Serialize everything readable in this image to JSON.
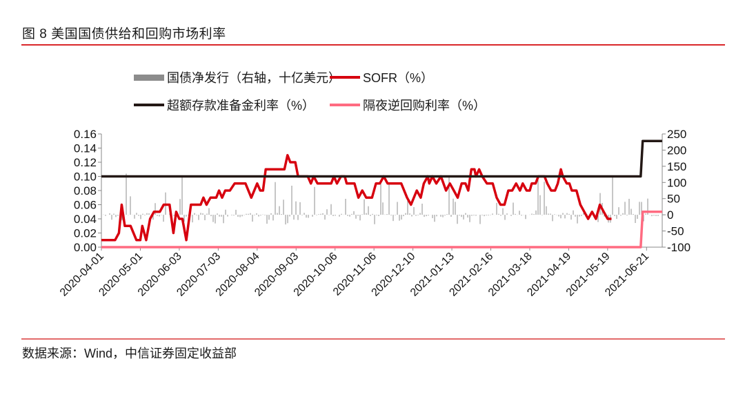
{
  "header": {
    "title": "图 8  美国国债供给和回购市场利率"
  },
  "footer": {
    "source": "数据来源：Wind，中信证券固定收益部"
  },
  "colors": {
    "rule_top": "#d9262a",
    "rule_bottom": "#e26a6a",
    "bars": "#8c8c8c",
    "sofr": "#d7000f",
    "ioer": "#231815",
    "rrp": "#ff6b81"
  },
  "legend": [
    {
      "label": "国债净发行（右轴，十亿美元）",
      "type": "bar",
      "color": "#8c8c8c"
    },
    {
      "label": "SOFR（%）",
      "type": "line",
      "color": "#d7000f"
    },
    {
      "label": "超额存款准备金利率（%）",
      "type": "line",
      "color": "#231815"
    },
    {
      "label": "隔夜逆回购利率（%）",
      "type": "line",
      "color": "#ff6b81"
    }
  ],
  "chart_data": {
    "type": "line",
    "title": "美国国债供给和回购市场利率",
    "xlabel": "",
    "ylabel": "%",
    "y2label": "十亿美元",
    "ylim": [
      0,
      0.16
    ],
    "y2lim": [
      -100,
      250
    ],
    "yticks": [
      "0.00",
      "0.02",
      "0.04",
      "0.06",
      "0.08",
      "0.10",
      "0.12",
      "0.14",
      "0.16"
    ],
    "y2ticks": [
      "-100",
      "-50",
      "0",
      "50",
      "100",
      "150",
      "200",
      "250"
    ],
    "xticks": [
      "2020-04-01",
      "2020-05-01",
      "2020-06-03",
      "2020-07-03",
      "2020-08-04",
      "2020-09-03",
      "2020-10-06",
      "2020-11-06",
      "2020-12-10",
      "2021-01-13",
      "2021-02-16",
      "2021-03-18",
      "2021-04-19",
      "2021-05-19",
      "2021-06-21"
    ],
    "grid": false,
    "legend_position": "top",
    "series": [
      {
        "name": "SOFR（%）",
        "axis": "left",
        "type": "line",
        "note": "x in tick-index units (0 = 2020-04-01, 14 = 2021-06-21)",
        "points": [
          [
            0,
            0.01
          ],
          [
            0.35,
            0.01
          ],
          [
            0.45,
            0.02
          ],
          [
            0.52,
            0.06
          ],
          [
            0.6,
            0.03
          ],
          [
            0.75,
            0.03
          ],
          [
            0.9,
            0.01
          ],
          [
            1.0,
            0.01
          ],
          [
            1.05,
            0.03
          ],
          [
            1.15,
            0.01
          ],
          [
            1.25,
            0.04
          ],
          [
            1.35,
            0.05
          ],
          [
            1.5,
            0.05
          ],
          [
            1.6,
            0.06
          ],
          [
            1.75,
            0.06
          ],
          [
            1.85,
            0.02
          ],
          [
            1.92,
            0.05
          ],
          [
            2.0,
            0.04
          ],
          [
            2.08,
            0.04
          ],
          [
            2.18,
            0.01
          ],
          [
            2.3,
            0.06
          ],
          [
            2.55,
            0.06
          ],
          [
            2.62,
            0.07
          ],
          [
            2.7,
            0.06
          ],
          [
            2.8,
            0.07
          ],
          [
            2.95,
            0.07
          ],
          [
            3.02,
            0.08
          ],
          [
            3.1,
            0.07
          ],
          [
            3.18,
            0.08
          ],
          [
            3.3,
            0.08
          ],
          [
            3.42,
            0.09
          ],
          [
            3.7,
            0.09
          ],
          [
            3.85,
            0.07
          ],
          [
            4.0,
            0.09
          ],
          [
            4.08,
            0.08
          ],
          [
            4.15,
            0.08
          ],
          [
            4.22,
            0.11
          ],
          [
            4.3,
            0.11
          ],
          [
            4.55,
            0.11
          ],
          [
            4.7,
            0.11
          ],
          [
            4.78,
            0.13
          ],
          [
            4.85,
            0.12
          ],
          [
            4.98,
            0.12
          ],
          [
            5.05,
            0.1
          ],
          [
            5.3,
            0.1
          ],
          [
            5.38,
            0.09
          ],
          [
            5.45,
            0.1
          ],
          [
            5.55,
            0.09
          ],
          [
            5.9,
            0.09
          ],
          [
            5.97,
            0.1
          ],
          [
            6.05,
            0.09
          ],
          [
            6.15,
            0.1
          ],
          [
            6.25,
            0.1
          ],
          [
            6.3,
            0.09
          ],
          [
            6.5,
            0.09
          ],
          [
            6.6,
            0.07
          ],
          [
            6.7,
            0.08
          ],
          [
            6.8,
            0.07
          ],
          [
            6.95,
            0.07
          ],
          [
            7.05,
            0.09
          ],
          [
            7.15,
            0.09
          ],
          [
            7.25,
            0.1
          ],
          [
            7.35,
            0.09
          ],
          [
            7.7,
            0.09
          ],
          [
            7.85,
            0.07
          ],
          [
            7.95,
            0.06
          ],
          [
            8.1,
            0.08
          ],
          [
            8.2,
            0.07
          ],
          [
            8.28,
            0.09
          ],
          [
            8.38,
            0.1
          ],
          [
            8.42,
            0.09
          ],
          [
            8.5,
            0.1
          ],
          [
            8.6,
            0.09
          ],
          [
            8.72,
            0.1
          ],
          [
            8.85,
            0.08
          ],
          [
            8.95,
            0.09
          ],
          [
            9.05,
            0.08
          ],
          [
            9.15,
            0.07
          ],
          [
            9.25,
            0.09
          ],
          [
            9.35,
            0.09
          ],
          [
            9.42,
            0.08
          ],
          [
            9.5,
            0.11
          ],
          [
            9.58,
            0.11
          ],
          [
            9.62,
            0.1
          ],
          [
            9.7,
            0.11
          ],
          [
            9.78,
            0.1
          ],
          [
            9.9,
            0.09
          ],
          [
            10.05,
            0.09
          ],
          [
            10.15,
            0.07
          ],
          [
            10.25,
            0.06
          ],
          [
            10.35,
            0.06
          ],
          [
            10.45,
            0.08
          ],
          [
            10.55,
            0.08
          ],
          [
            10.65,
            0.09
          ],
          [
            10.75,
            0.08
          ],
          [
            10.82,
            0.09
          ],
          [
            10.92,
            0.08
          ],
          [
            11.0,
            0.08
          ],
          [
            11.05,
            0.09
          ],
          [
            11.15,
            0.09
          ],
          [
            11.22,
            0.1
          ],
          [
            11.3,
            0.1
          ],
          [
            11.38,
            0.1
          ],
          [
            11.45,
            0.09
          ],
          [
            11.55,
            0.08
          ],
          [
            11.65,
            0.08
          ],
          [
            11.72,
            0.09
          ],
          [
            11.8,
            0.11
          ],
          [
            11.85,
            0.1
          ],
          [
            11.95,
            0.09
          ],
          [
            12.02,
            0.09
          ],
          [
            12.08,
            0.08
          ],
          [
            12.2,
            0.08
          ],
          [
            12.3,
            0.06
          ],
          [
            12.4,
            0.05
          ],
          [
            12.5,
            0.04
          ],
          [
            12.6,
            0.05
          ],
          [
            12.7,
            0.04
          ],
          [
            12.8,
            0.06
          ],
          [
            12.9,
            0.05
          ],
          [
            13.0,
            0.04
          ],
          [
            13.1,
            0.04
          ]
        ]
      },
      {
        "name": "超额存款准备金利率（%）",
        "axis": "left",
        "type": "line",
        "points": [
          [
            0,
            0.1
          ],
          [
            13.85,
            0.1
          ],
          [
            13.9,
            0.15
          ],
          [
            14.4,
            0.15
          ]
        ]
      },
      {
        "name": "隔夜逆回购利率（%）",
        "axis": "left",
        "type": "line",
        "points": [
          [
            0,
            0.0
          ],
          [
            13.85,
            0.0
          ],
          [
            13.9,
            0.05
          ],
          [
            14.4,
            0.05
          ]
        ]
      }
    ]
  }
}
